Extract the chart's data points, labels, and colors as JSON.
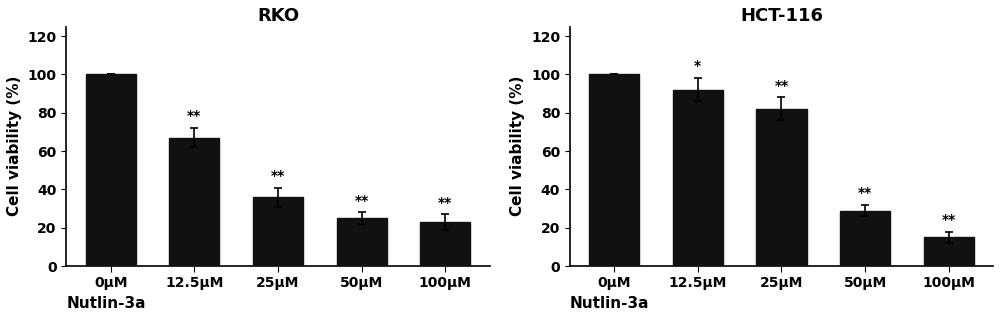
{
  "rko": {
    "title": "RKO",
    "values": [
      100,
      67,
      36,
      25,
      23
    ],
    "errors": [
      0,
      5,
      5,
      3,
      4
    ],
    "categories": [
      "0μM",
      "12.5μM",
      "25μM",
      "50μM",
      "100μM"
    ],
    "significance": [
      "",
      "**",
      "**",
      "**",
      "**"
    ]
  },
  "hct116": {
    "title": "HCT-116",
    "values": [
      100,
      92,
      82,
      29,
      15
    ],
    "errors": [
      0,
      6,
      6,
      3,
      3
    ],
    "categories": [
      "0μM",
      "12.5μM",
      "25μM",
      "50μM",
      "100μM"
    ],
    "significance": [
      "",
      "*",
      "**",
      "**",
      "**"
    ]
  },
  "ylabel": "Cell viability (%)",
  "xlabel": "Nutlin-3a",
  "ylim": [
    0,
    125
  ],
  "yticks": [
    0,
    20,
    40,
    60,
    80,
    100,
    120
  ],
  "bar_color": "#111111",
  "bar_width": 0.6,
  "background_color": "#ffffff",
  "sig_fontsize": 10,
  "title_fontsize": 13,
  "label_fontsize": 11,
  "tick_fontsize": 10
}
